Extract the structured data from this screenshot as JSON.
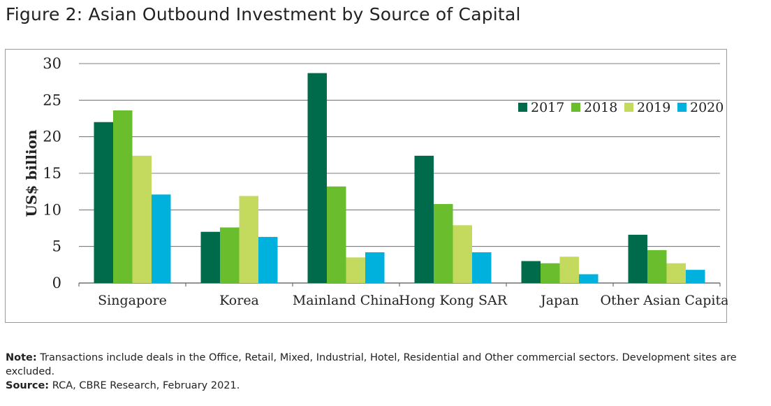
{
  "figure_title": "Figure 2: Asian Outbound Investment by Source of Capital",
  "notes": {
    "note_label": "Note:",
    "note_text": "Transactions include deals in the Office, Retail, Mixed, Industrial, Hotel, Residential and Other commercial sectors. Development sites are excluded.",
    "source_label": "Source:",
    "source_text": "RCA, CBRE Research, February 2021."
  },
  "colors": {
    "2017": "#006B4A",
    "2018": "#6ABD2D",
    "2019": "#C3DA5F",
    "2020": "#00B1DE",
    "gridline": "#555555",
    "frame": "#9a9a9a"
  },
  "chart_data": {
    "type": "bar",
    "title": "",
    "xlabel": "",
    "ylabel": "US$ billion",
    "ylim": [
      0,
      30
    ],
    "yticks": [
      0,
      5,
      10,
      15,
      20,
      25,
      30
    ],
    "grid": true,
    "legend_position": "top-right",
    "categories": [
      "Singapore",
      "Korea",
      "Mainland China",
      "Hong Kong SAR",
      "Japan",
      "Other Asian Capital"
    ],
    "series": [
      {
        "name": "2017",
        "values": [
          22.0,
          7.0,
          28.7,
          17.4,
          3.0,
          6.6
        ]
      },
      {
        "name": "2018",
        "values": [
          23.6,
          7.6,
          13.2,
          10.8,
          2.7,
          4.5
        ]
      },
      {
        "name": "2019",
        "values": [
          17.4,
          11.9,
          3.5,
          7.9,
          3.6,
          2.7
        ]
      },
      {
        "name": "2020",
        "values": [
          12.1,
          6.3,
          4.2,
          4.2,
          1.2,
          1.8
        ]
      }
    ]
  }
}
